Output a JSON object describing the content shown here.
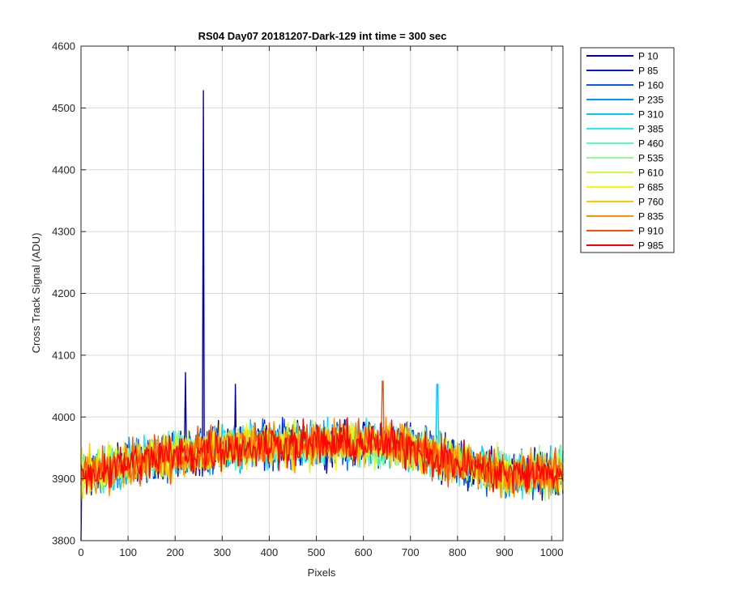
{
  "chart_data": {
    "type": "line",
    "title": "RS04 Day07 20181207-Dark-129 int time = 300 sec",
    "xlabel": "Pixels",
    "ylabel": "Cross Track Signal (ADU)",
    "xlim": [
      0,
      1024
    ],
    "ylim": [
      3800,
      4600
    ],
    "xticks": [
      0,
      100,
      200,
      300,
      400,
      500,
      600,
      700,
      800,
      900,
      1000
    ],
    "yticks": [
      3800,
      3900,
      4000,
      4100,
      4200,
      4300,
      4400,
      4500,
      4600
    ],
    "grid": true,
    "legend_position": "outside-top-right",
    "trend": {
      "x": [
        0,
        100,
        200,
        300,
        400,
        500,
        600,
        700,
        800,
        900,
        1024
      ],
      "y": [
        3905,
        3925,
        3938,
        3950,
        3955,
        3957,
        3957,
        3953,
        3925,
        3908,
        3910
      ]
    },
    "noise_amplitude_adu": 25,
    "series": [
      {
        "name": "P 10",
        "color": "#0000a8"
      },
      {
        "name": "P 85",
        "color": "#0018e0"
      },
      {
        "name": "P 160",
        "color": "#0058ff"
      },
      {
        "name": "P 235",
        "color": "#0098ff"
      },
      {
        "name": "P 310",
        "color": "#00c8ff"
      },
      {
        "name": "P 385",
        "color": "#20f0f0"
      },
      {
        "name": "P 460",
        "color": "#60f8c0"
      },
      {
        "name": "P 535",
        "color": "#90ff90"
      },
      {
        "name": "P 610",
        "color": "#c8ff40"
      },
      {
        "name": "P 685",
        "color": "#f8f800"
      },
      {
        "name": "P 760",
        "color": "#ffc800"
      },
      {
        "name": "P 835",
        "color": "#ff9000"
      },
      {
        "name": "P 910",
        "color": "#ff5000"
      },
      {
        "name": "P 985",
        "color": "#ff0000"
      }
    ],
    "spikes": [
      {
        "series": "P 10",
        "x": 260,
        "y": 4528
      },
      {
        "series": "P 10",
        "x": 222,
        "y": 4072
      },
      {
        "series": "P 10",
        "x": 328,
        "y": 4053
      },
      {
        "series": "P 910",
        "x": 641,
        "y": 4058
      },
      {
        "series": "P 310",
        "x": 757,
        "y": 4053
      },
      {
        "series": "P 10",
        "x": 0,
        "y": 3800
      }
    ]
  }
}
